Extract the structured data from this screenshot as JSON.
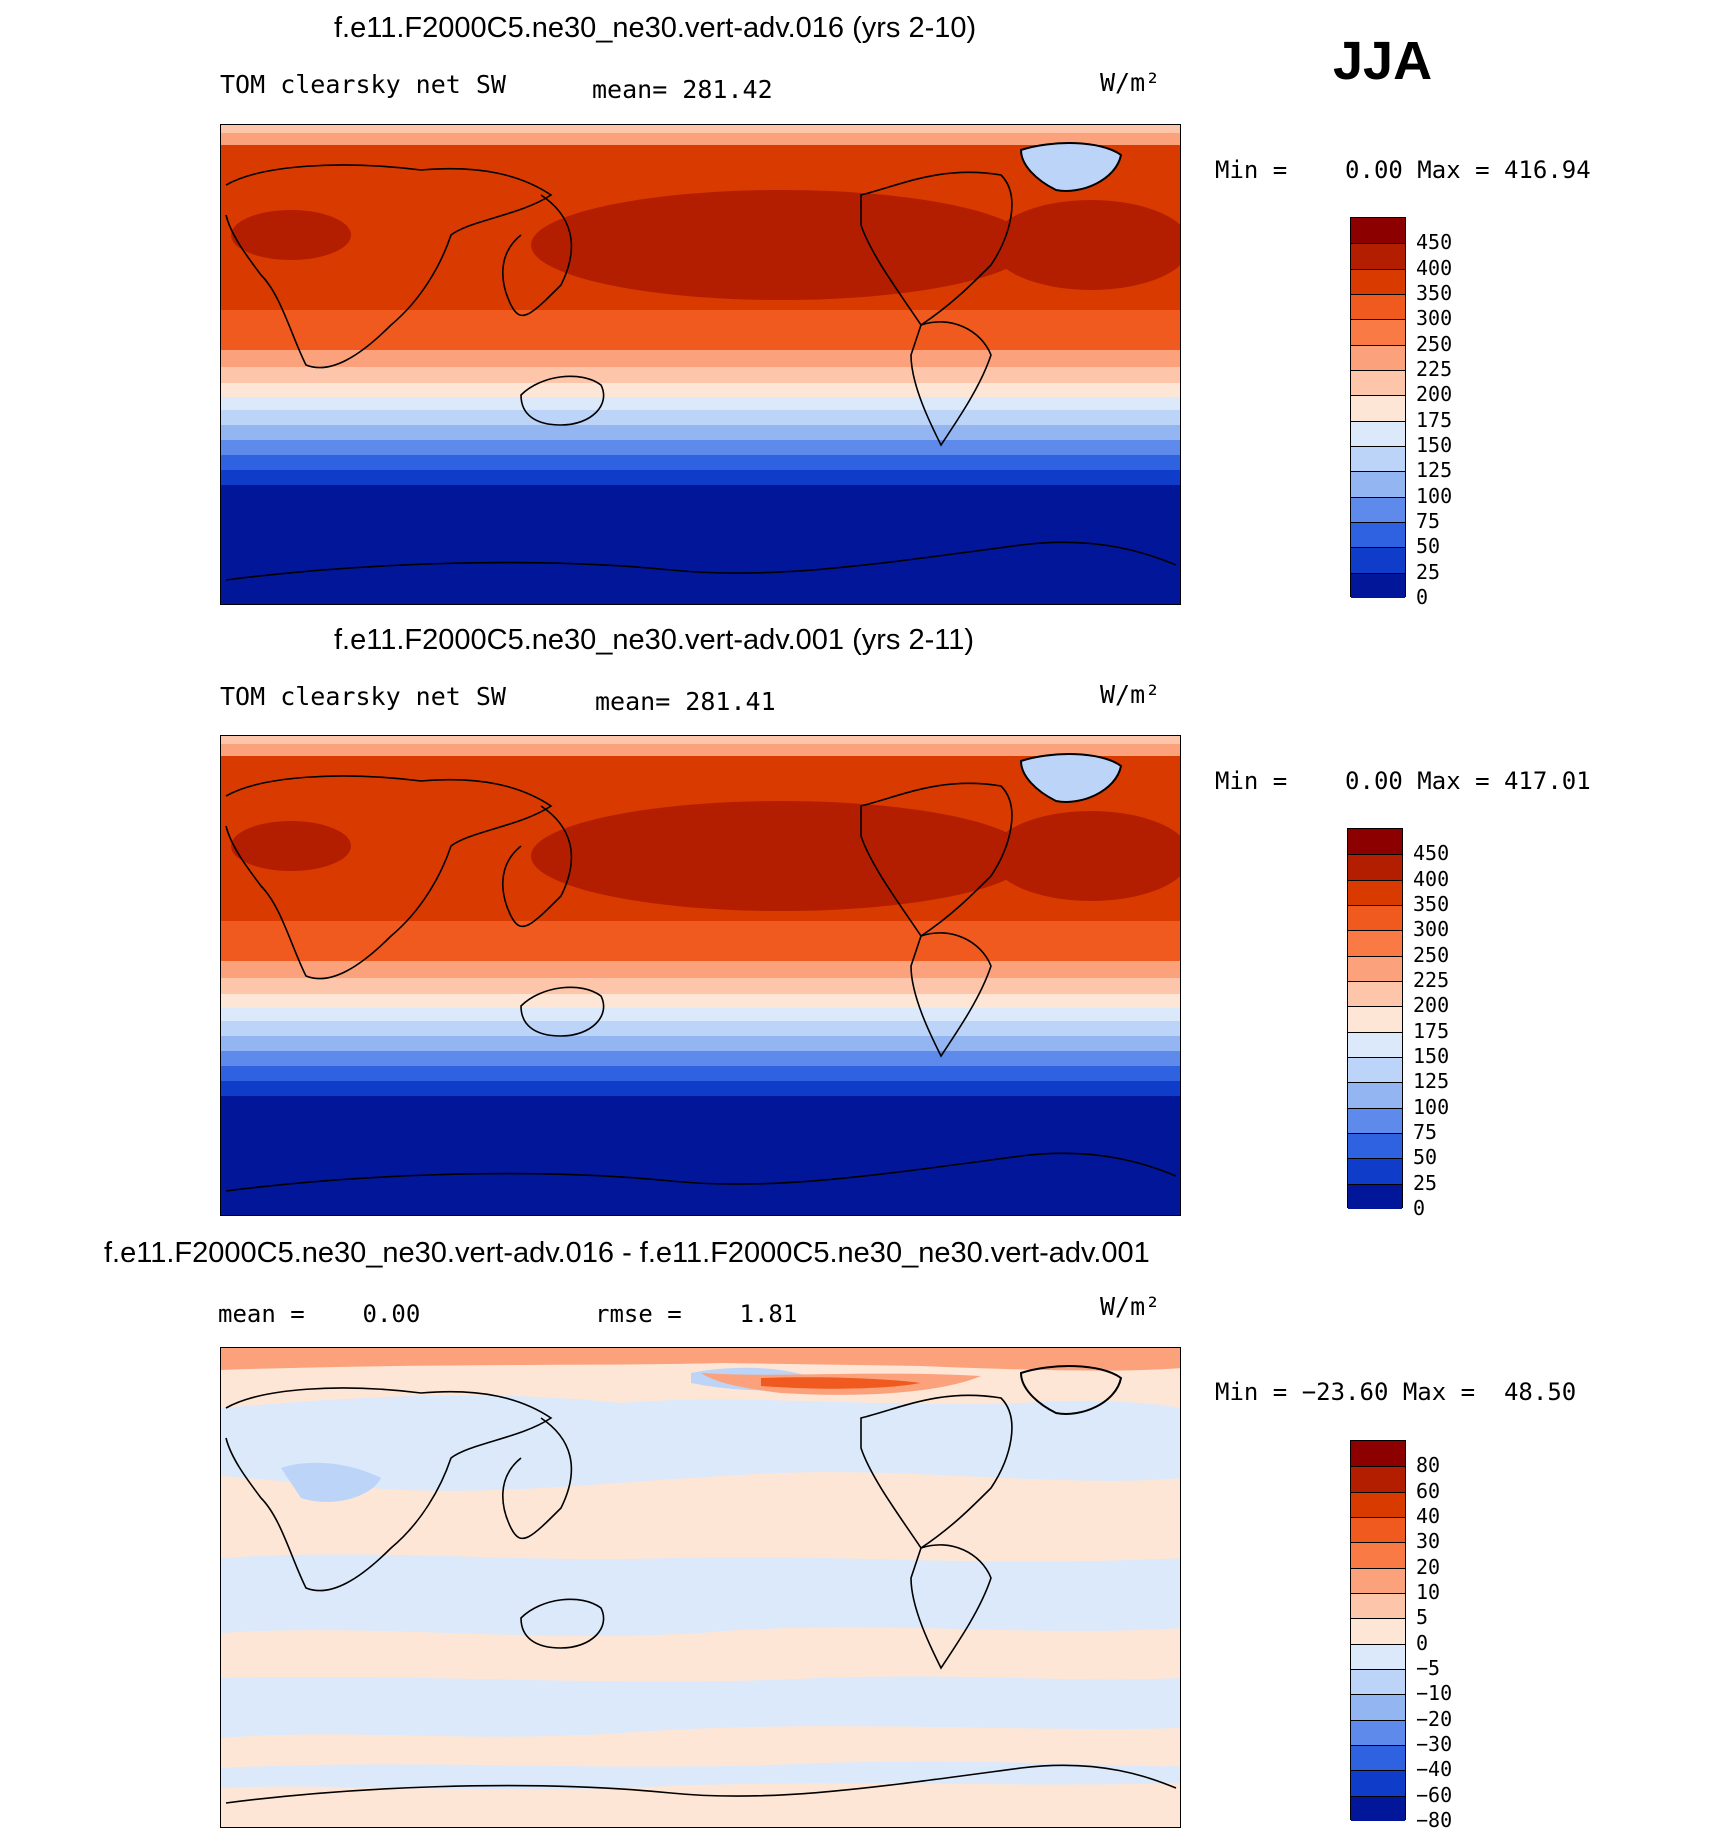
{
  "season": "JJA",
  "panels": [
    {
      "title": "f.e11.F2000C5.ne30_ne30.vert-adv.016 (yrs 2-10)",
      "left_label": "TOM clearsky net SW",
      "center_label": "mean= 281.42",
      "units": "W/m²",
      "minmax": "Min =    0.00 Max = 416.94",
      "colorbar": {
        "labels": [
          "450",
          "400",
          "350",
          "300",
          "250",
          "225",
          "200",
          "175",
          "150",
          "125",
          "100",
          "75",
          "50",
          "25",
          "0"
        ],
        "colors": [
          "#8c0000",
          "#b31e00",
          "#d93a00",
          "#f05a1e",
          "#fa7a45",
          "#fba27d",
          "#fdc6ab",
          "#fde6d6",
          "#dbe9fb",
          "#bcd4f8",
          "#93b6f3",
          "#5e8aec",
          "#2f62e0",
          "#0f3cc8",
          "#02169a"
        ]
      }
    },
    {
      "title": "f.e11.F2000C5.ne30_ne30.vert-adv.001 (yrs 2-11)",
      "left_label": "TOM clearsky net SW",
      "center_label": "mean= 281.41",
      "units": "W/m²",
      "minmax": "Min =    0.00 Max = 417.01",
      "colorbar": {
        "labels": [
          "450",
          "400",
          "350",
          "300",
          "250",
          "225",
          "200",
          "175",
          "150",
          "125",
          "100",
          "75",
          "50",
          "25",
          "0"
        ],
        "colors": [
          "#8c0000",
          "#b31e00",
          "#d93a00",
          "#f05a1e",
          "#fa7a45",
          "#fba27d",
          "#fdc6ab",
          "#fde6d6",
          "#dbe9fb",
          "#bcd4f8",
          "#93b6f3",
          "#5e8aec",
          "#2f62e0",
          "#0f3cc8",
          "#02169a"
        ]
      }
    },
    {
      "title": "f.e11.F2000C5.ne30_ne30.vert-adv.016 - f.e11.F2000C5.ne30_ne30.vert-adv.001",
      "left_label": "mean =    0.00",
      "center_label": "rmse =    1.81",
      "units": "W/m²",
      "minmax": "Min = −23.60 Max =  48.50",
      "colorbar": {
        "labels": [
          "80",
          "60",
          "40",
          "30",
          "20",
          "10",
          "5",
          "0",
          "−5",
          "−10",
          "−20",
          "−30",
          "−40",
          "−60",
          "−80"
        ],
        "colors": [
          "#8c0000",
          "#b31e00",
          "#d93a00",
          "#f05a1e",
          "#fa7a45",
          "#fba27d",
          "#fdc6ab",
          "#fde6d6",
          "#dbe9fb",
          "#bcd4f8",
          "#93b6f3",
          "#5e8aec",
          "#2f62e0",
          "#0f3cc8",
          "#02169a"
        ]
      }
    }
  ]
}
